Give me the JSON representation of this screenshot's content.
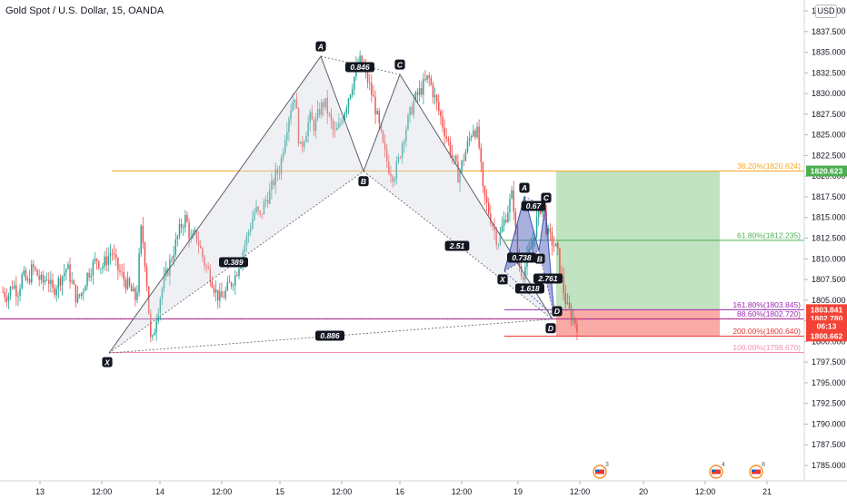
{
  "header": {
    "title": "Gold Spot / U.S. Dollar, 15, OANDA",
    "currency": "USD"
  },
  "colors": {
    "up": "#26a69a",
    "down": "#ef5350",
    "pattern_big": "#d1d4dc",
    "pattern_small": "#3f51b5",
    "fib382": "#f9a825",
    "fib618": "#4caf50",
    "fib886": "#9c27b0",
    "fib1618": "#9c27b0",
    "fib200": "#e53935",
    "fib100": "#f48fb1",
    "target": "#4caf50",
    "stop": "#f44336"
  },
  "chart_data": {
    "type": "candlestick",
    "symbol": "Gold Spot / U.S. Dollar",
    "interval": "15",
    "source": "OANDA",
    "ylim": [
      1782.5,
      1842.5
    ],
    "y_ticks": [
      "1785.000",
      "1787.500",
      "1790.000",
      "1792.500",
      "1795.000",
      "1797.500",
      "1800.000",
      "1802.500",
      "1805.000",
      "1807.500",
      "1810.000",
      "1812.500",
      "1815.000",
      "1817.500",
      "1820.000",
      "1822.500",
      "1825.000",
      "1827.500",
      "1830.000",
      "1832.500",
      "1835.000",
      "1837.500",
      "1840.000"
    ],
    "x_ticks": [
      "13",
      "12:00",
      "14",
      "12:00",
      "15",
      "12:00",
      "16",
      "12:00",
      "19",
      "12:00",
      "20",
      "12:00",
      "21"
    ],
    "price_path": [
      1806,
      1805.5,
      1807,
      1806,
      1808,
      1807,
      1809,
      1808,
      1807,
      1808,
      1806,
      1807,
      1808,
      1809,
      1807,
      1805,
      1806,
      1808,
      1809,
      1810,
      1809,
      1810,
      1811,
      1809,
      1808,
      1807,
      1806,
      1805,
      1814,
      1808,
      1799,
      1803,
      1806,
      1808,
      1810,
      1812,
      1814,
      1815,
      1812,
      1813,
      1811,
      1809,
      1808,
      1806,
      1805,
      1806,
      1807,
      1808,
      1810,
      1812,
      1814,
      1816,
      1815,
      1817,
      1818,
      1820,
      1821,
      1825,
      1828,
      1830,
      1823,
      1825,
      1827,
      1826,
      1828,
      1829,
      1827,
      1825,
      1826,
      1828,
      1830,
      1832,
      1834,
      1833,
      1831,
      1829,
      1826,
      1823,
      1821,
      1820,
      1822,
      1825,
      1827,
      1829,
      1830,
      1831,
      1832,
      1830,
      1828,
      1826,
      1824,
      1822,
      1820,
      1822,
      1824,
      1826,
      1825,
      1818,
      1816,
      1814,
      1812,
      1814,
      1816,
      1818,
      1810,
      1808,
      1810,
      1812,
      1815,
      1817,
      1813,
      1812,
      1811,
      1807,
      1804,
      1803,
      1802
    ],
    "harmonic_big": {
      "points": [
        {
          "label": "X",
          "price": 1798.6
        },
        {
          "label": "A",
          "price": 1834.5
        },
        {
          "label": "B",
          "price": 1820.6
        },
        {
          "label": "C",
          "price": 1832.3
        },
        {
          "label": "D",
          "price": 1802.7
        }
      ],
      "ratios": [
        "0.389",
        "0.846",
        "2.51",
        "0.886"
      ]
    },
    "harmonic_small": {
      "points": [
        {
          "label": "X",
          "price": 1808.5
        },
        {
          "label": "A",
          "price": 1817.5
        },
        {
          "label": "B",
          "price": 1811.0
        },
        {
          "label": "C",
          "price": 1816.4
        },
        {
          "label": "D",
          "price": 1803.0
        }
      ],
      "ratios": [
        "0.738",
        "0.67",
        "2.761",
        "1.618"
      ]
    },
    "fib_levels": [
      {
        "label": "38.20%(1820.624)",
        "price": 1820.624
      },
      {
        "label": "61.80%(1812.235)",
        "price": 1812.235
      },
      {
        "label": "161.80%(1803.845)",
        "price": 1803.845
      },
      {
        "label": "88.60%(1802.720)",
        "price": 1802.72
      },
      {
        "label": "200.00%(1800.640)",
        "price": 1800.64
      },
      {
        "label": "100.00%(1798.670)",
        "price": 1798.67
      }
    ],
    "position": {
      "entry": 1803.841,
      "target": 1820.623,
      "stop": 1800.662
    },
    "price_tags": [
      {
        "text": "1820.623",
        "price": 1820.623,
        "color": "#4caf50"
      },
      {
        "text": "1803.841",
        "price": 1803.841,
        "color": "#f44336"
      },
      {
        "text": "1802.780",
        "price": 1802.78,
        "color": "#f44336"
      },
      {
        "text": "06:13",
        "price": 1801.9,
        "color": "#f44336"
      },
      {
        "text": "1800.662",
        "price": 1800.662,
        "color": "#f44336"
      }
    ],
    "events": [
      "3",
      "4",
      "8"
    ]
  }
}
